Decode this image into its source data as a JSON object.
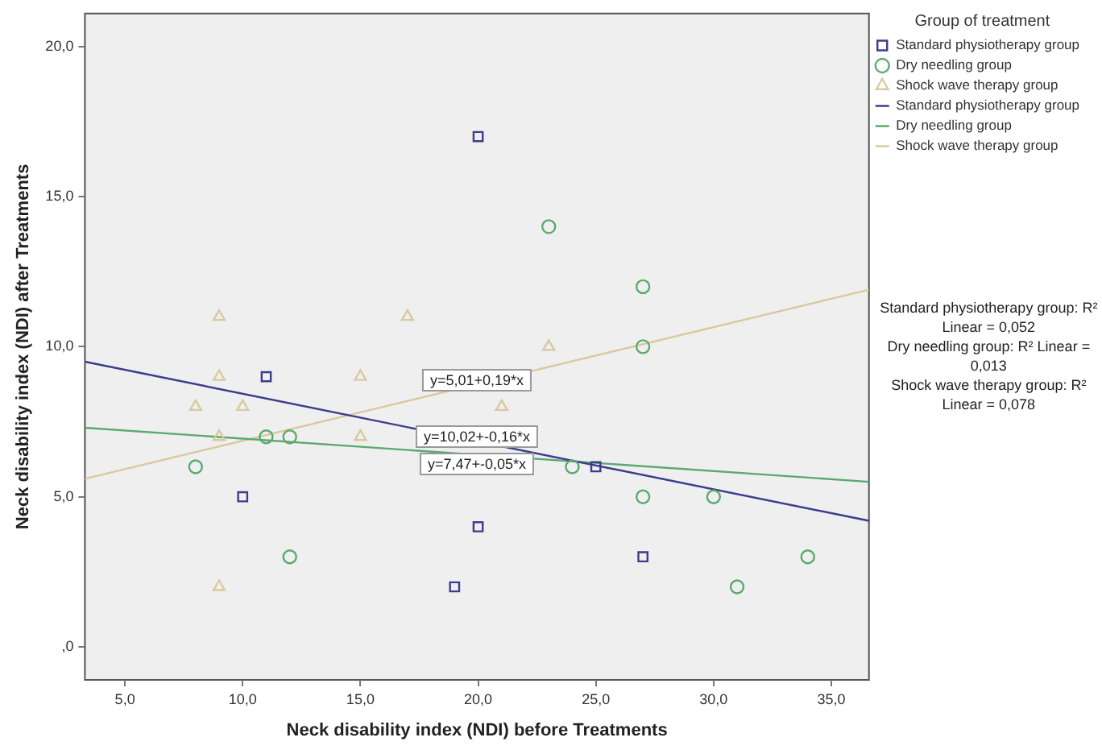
{
  "chart_data": {
    "type": "scatter",
    "xlabel": "Neck disability index (NDI) before Treatments",
    "ylabel": "Neck disability index (NDI) after Treatments",
    "legend_title": "Group of treatment",
    "legend": "right",
    "grid": false,
    "xlim": [
      3.3,
      36.6
    ],
    "xticks": [
      {
        "value": 5,
        "label": "5,0"
      },
      {
        "value": 10,
        "label": "10,0"
      },
      {
        "value": 15,
        "label": "15,0"
      },
      {
        "value": 20,
        "label": "20,0"
      },
      {
        "value": 25,
        "label": "25,0"
      },
      {
        "value": 30,
        "label": "30,0"
      },
      {
        "value": 35,
        "label": "35,0"
      }
    ],
    "ylim": [
      -1.1,
      21.1
    ],
    "yticks": [
      {
        "value": 0,
        "label": ",0"
      },
      {
        "value": 5,
        "label": "5,0"
      },
      {
        "value": 10,
        "label": "10,0"
      },
      {
        "value": 15,
        "label": "15,0"
      },
      {
        "value": 20,
        "label": "20,0"
      }
    ],
    "series": [
      {
        "name": "Standard physiotherapy group",
        "color": "#3c3c8c",
        "marker": "square",
        "x": [
          20,
          11,
          10,
          20,
          27,
          19,
          25
        ],
        "values": [
          17,
          9,
          5,
          4,
          3,
          2,
          6
        ]
      },
      {
        "name": "Dry needling group",
        "color": "#5aaa6e",
        "marker": "circle",
        "x": [
          23,
          27,
          27,
          27,
          30,
          12,
          31,
          34,
          8,
          11,
          12,
          24
        ],
        "values": [
          14,
          12,
          10,
          5,
          5,
          3,
          2,
          3,
          6,
          7,
          7,
          6
        ]
      },
      {
        "name": "Shock wave therapy group",
        "color": "#d8c9a0",
        "marker": "triangle",
        "x": [
          9,
          17,
          23,
          9,
          15,
          8,
          10,
          21,
          9,
          15,
          9
        ],
        "values": [
          11,
          11,
          10,
          9,
          9,
          8,
          8,
          8,
          7,
          7,
          2
        ]
      },
      {
        "name": "Standard physiotherapy group",
        "type": "line",
        "color": "#3c3c8c",
        "x": [
          3.3,
          36.6
        ],
        "values": [
          9.5,
          4.2
        ]
      },
      {
        "name": "Dry needling group",
        "type": "line",
        "color": "#5aaa6e",
        "x": [
          3.3,
          36.6
        ],
        "values": [
          7.3,
          5.5
        ]
      },
      {
        "name": "Shock wave therapy group",
        "type": "line",
        "color": "#d8c9a0",
        "x": [
          3.3,
          36.6
        ],
        "values": [
          5.6,
          11.9
        ]
      }
    ],
    "annotations": [
      "y=5,01+0,19*x",
      "y=10,02+-0,16*x",
      "y=7,47+-0,05*x",
      "Standard physiotherapy group: R² Linear = 0,052",
      "Dry needling group: R² Linear = 0,013",
      "Shock wave therapy group: R² Linear = 0,078"
    ]
  }
}
